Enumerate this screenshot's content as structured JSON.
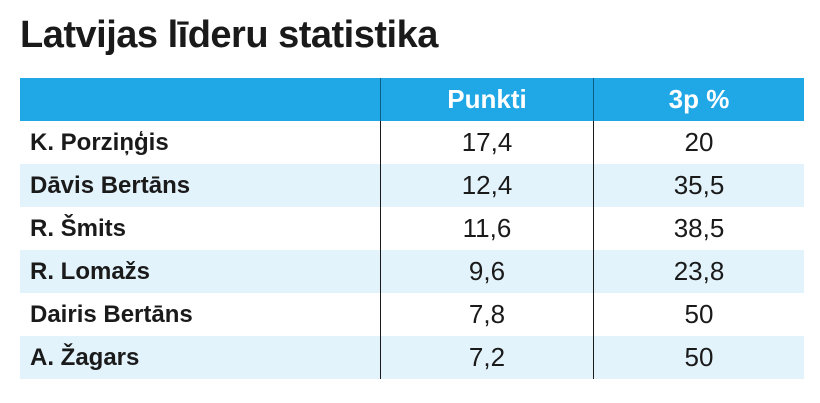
{
  "title": "Latvijas līderu statistika",
  "colors": {
    "header_bg": "#1fa7e6",
    "alt_row_bg": "#e3f3fb",
    "header_text": "#ffffff"
  },
  "chart_data": {
    "type": "table",
    "title": "Latvijas līderu statistika",
    "columns": [
      "",
      "Punkti",
      "3p %"
    ],
    "rows": [
      {
        "player": "K. Porziņģis",
        "punkti": "17,4",
        "three_pct": "20"
      },
      {
        "player": "Dāvis Bertāns",
        "punkti": "12,4",
        "three_pct": "35,5"
      },
      {
        "player": "R. Šmits",
        "punkti": "11,6",
        "three_pct": "38,5"
      },
      {
        "player": "R. Lomažs",
        "punkti": "9,6",
        "three_pct": "23,8"
      },
      {
        "player": "Dairis Bertāns",
        "punkti": "7,8",
        "three_pct": "50"
      },
      {
        "player": "A. Žagars",
        "punkti": "7,2",
        "three_pct": "50"
      }
    ]
  }
}
